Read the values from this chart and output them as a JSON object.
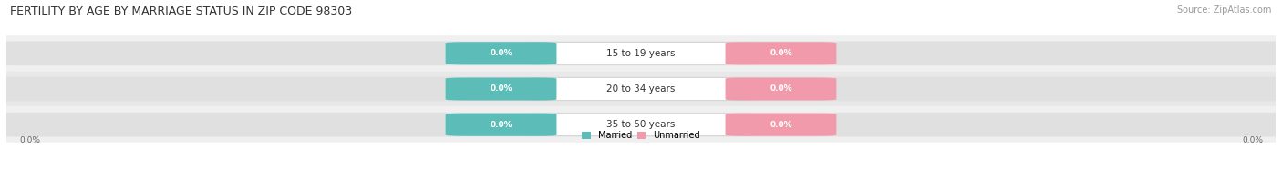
{
  "title": "FERTILITY BY AGE BY MARRIAGE STATUS IN ZIP CODE 98303",
  "source": "Source: ZipAtlas.com",
  "categories": [
    "15 to 19 years",
    "20 to 34 years",
    "35 to 50 years"
  ],
  "married_values": [
    0.0,
    0.0,
    0.0
  ],
  "unmarried_values": [
    0.0,
    0.0,
    0.0
  ],
  "married_color": "#5bbcb8",
  "unmarried_color": "#f09aab",
  "bar_bg_color": "#e0e0e0",
  "row_bg_colors": [
    "#f0f0f0",
    "#e8e8e8",
    "#f0f0f0"
  ],
  "title_fontsize": 9,
  "source_fontsize": 7,
  "label_fontsize": 7.5,
  "value_fontsize": 6.5,
  "value_label_color": "#ffffff",
  "category_label_color": "#333333",
  "axis_label_color": "#666666",
  "legend_married": "Married",
  "legend_unmarried": "Unmarried"
}
